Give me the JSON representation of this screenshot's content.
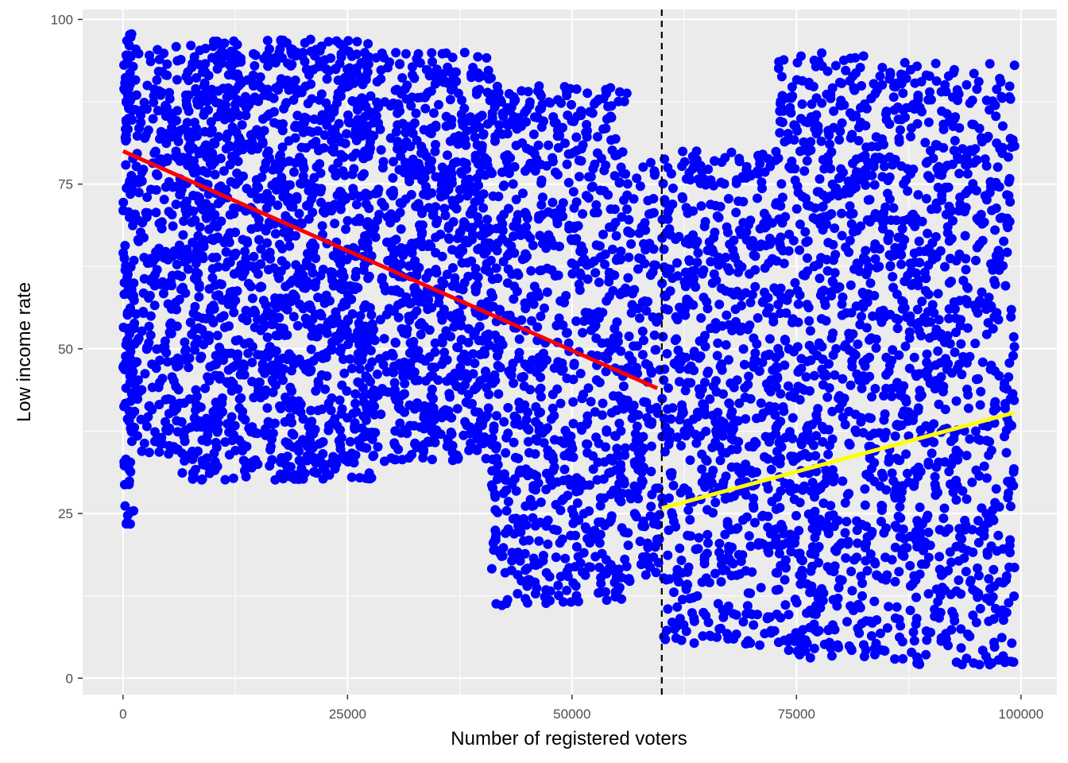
{
  "chart_data": {
    "type": "scatter",
    "title": "",
    "xlabel": "Number of registered voters",
    "ylabel": "Low income rate",
    "xlim": [
      -4500,
      104000
    ],
    "ylim": [
      -2.5,
      101.5
    ],
    "x_ticks": [
      0,
      25000,
      50000,
      75000,
      100000
    ],
    "x_tick_labels": [
      "0",
      "25000",
      "50000",
      "75000",
      "100000"
    ],
    "y_ticks": [
      0,
      25,
      50,
      75,
      100
    ],
    "y_tick_labels": [
      "0",
      "25",
      "50",
      "75",
      "100"
    ],
    "grid": true,
    "legend": "none",
    "cutoff": 60000,
    "point_color": "#0000ff",
    "panel_background": "#ebebeb",
    "series": [
      {
        "kind": "scatter",
        "color": "#0000ff",
        "clusters": [
          {
            "x": [
              0,
              1200
            ],
            "y": [
              23,
              98
            ],
            "n": 140
          },
          {
            "x": [
              1200,
              6500
            ],
            "y": [
              34,
              96
            ],
            "n": 260
          },
          {
            "x": [
              6500,
              28000
            ],
            "y": [
              30,
              97
            ],
            "n": 1400
          },
          {
            "x": [
              28000,
              30000
            ],
            "y": [
              31,
              96
            ],
            "n": 60
          },
          {
            "x": [
              30000,
              41000
            ],
            "y": [
              33,
              95
            ],
            "n": 650
          },
          {
            "x": [
              41000,
              56500
            ],
            "y": [
              11,
              90
            ],
            "n": 850
          },
          {
            "x": [
              56500,
              59800
            ],
            "y": [
              15,
              79
            ],
            "n": 140
          },
          {
            "x": [
              60000,
              73000
            ],
            "y": [
              5,
              80
            ],
            "n": 650
          },
          {
            "x": [
              73000,
              83000
            ],
            "y": [
              3,
              95
            ],
            "n": 620
          },
          {
            "x": [
              83000,
              99300
            ],
            "y": [
              2,
              94
            ],
            "n": 900
          }
        ]
      },
      {
        "kind": "line",
        "color": "#ff0000",
        "x": [
          0,
          59500
        ],
        "y": [
          80.0,
          44.0
        ]
      },
      {
        "kind": "line",
        "color": "#ffff00",
        "x": [
          60000,
          99200
        ],
        "y": [
          25.8,
          40.3
        ]
      }
    ]
  }
}
